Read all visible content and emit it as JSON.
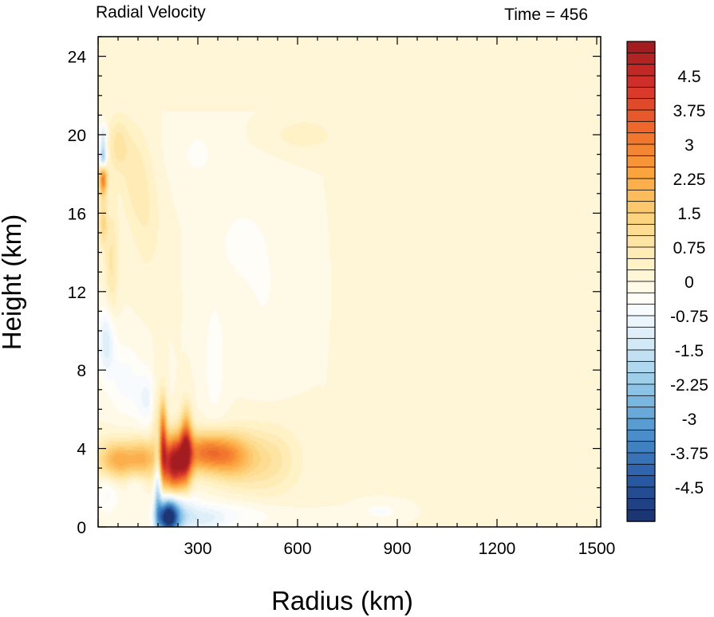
{
  "chart_data": {
    "type": "heatmap",
    "title": "Radial Velocity",
    "time_label": "Time = 456",
    "xlabel": "Radius (km)",
    "ylabel": "Height (km)",
    "xlim": [
      0,
      1500
    ],
    "ylim": [
      0,
      25
    ],
    "x_ticks": [
      300,
      600,
      900,
      1200,
      1500
    ],
    "y_ticks": [
      0,
      4,
      8,
      12,
      16,
      20,
      24
    ],
    "colorbar": {
      "range": [
        -5.25,
        5.25
      ],
      "levels": 42,
      "tick_values": [
        4.5,
        3.75,
        3,
        2.25,
        1.5,
        0.75,
        0,
        -0.75,
        -1.5,
        -2.25,
        -3,
        -3.75,
        -4.5
      ],
      "tick_labels": [
        "4.5",
        "3.75",
        "3",
        "2.25",
        "1.5",
        "0.75",
        "0",
        "-0.75",
        "-1.5",
        "-2.25",
        "-3",
        "-3.75",
        "-4.5"
      ],
      "color_stops": [
        "#1a2f6b",
        "#2a5ca8",
        "#4a90cc",
        "#8ac4e6",
        "#cfe8f6",
        "#ffffff",
        "#fff0c0",
        "#fdd27a",
        "#fba23c",
        "#ee6a2a",
        "#d4302a",
        "#9c1a1e"
      ]
    },
    "features": [
      {
        "x": 230,
        "y": 3.2,
        "sx": 28,
        "sy": 1.0,
        "v": 5.0
      },
      {
        "x": 195,
        "y": 4.6,
        "sx": 8,
        "sy": 1.4,
        "v": 3.0
      },
      {
        "x": 265,
        "y": 4.2,
        "sx": 12,
        "sy": 1.2,
        "v": 3.0
      },
      {
        "x": 320,
        "y": 3.8,
        "sx": 50,
        "sy": 0.7,
        "v": 2.8
      },
      {
        "x": 400,
        "y": 3.6,
        "sx": 45,
        "sy": 0.8,
        "v": 1.8
      },
      {
        "x": 500,
        "y": 3.4,
        "sx": 70,
        "sy": 1.2,
        "v": 1.0
      },
      {
        "x": 60,
        "y": 3.4,
        "sx": 45,
        "sy": 0.7,
        "v": 2.2
      },
      {
        "x": 140,
        "y": 3.5,
        "sx": 30,
        "sy": 0.7,
        "v": 1.6
      },
      {
        "x": 15,
        "y": 17.8,
        "sx": 8,
        "sy": 0.6,
        "v": 3.2
      },
      {
        "x": 15,
        "y": 15.5,
        "sx": 8,
        "sy": 0.8,
        "v": 1.2
      },
      {
        "x": 40,
        "y": 13.5,
        "sx": 14,
        "sy": 2.2,
        "v": 0.8
      },
      {
        "x": 60,
        "y": 19.5,
        "sx": 22,
        "sy": 1.0,
        "v": 0.8
      },
      {
        "x": 110,
        "y": 18.0,
        "sx": 30,
        "sy": 1.8,
        "v": 0.6
      },
      {
        "x": 150,
        "y": 15.5,
        "sx": 30,
        "sy": 2.0,
        "v": 0.4
      },
      {
        "x": 175,
        "y": 5.5,
        "sx": 10,
        "sy": 1.5,
        "v": 1.0
      },
      {
        "x": 620,
        "y": 20.0,
        "sx": 60,
        "sy": 0.5,
        "v": 0.5
      },
      {
        "x": 210,
        "y": 0.5,
        "sx": 22,
        "sy": 0.6,
        "v": -5.0
      },
      {
        "x": 240,
        "y": 0.8,
        "sx": 35,
        "sy": 0.8,
        "v": -1.5
      },
      {
        "x": 320,
        "y": 0.4,
        "sx": 45,
        "sy": 0.5,
        "v": -0.8
      },
      {
        "x": 420,
        "y": 0.6,
        "sx": 90,
        "sy": 0.5,
        "v": -0.5
      },
      {
        "x": 850,
        "y": 0.8,
        "sx": 30,
        "sy": 0.2,
        "v": -0.6
      },
      {
        "x": 15,
        "y": 18.8,
        "sx": 7,
        "sy": 0.5,
        "v": -2.8
      },
      {
        "x": 15,
        "y": 20.0,
        "sx": 7,
        "sy": 0.4,
        "v": -1.2
      },
      {
        "x": 25,
        "y": 9.5,
        "sx": 18,
        "sy": 1.2,
        "v": -1.2
      },
      {
        "x": 80,
        "y": 7.5,
        "sx": 35,
        "sy": 1.3,
        "v": -0.6
      },
      {
        "x": 150,
        "y": 6.5,
        "sx": 25,
        "sy": 1.0,
        "v": -0.8
      },
      {
        "x": 180,
        "y": 2.3,
        "sx": 8,
        "sy": 1.8,
        "v": -2.0
      },
      {
        "x": 350,
        "y": 8.5,
        "sx": 25,
        "sy": 2.5,
        "v": -0.4
      },
      {
        "x": 420,
        "y": 14.5,
        "sx": 50,
        "sy": 1.5,
        "v": -0.3
      },
      {
        "x": 500,
        "y": 12.0,
        "sx": 50,
        "sy": 3.0,
        "v": -0.25
      },
      {
        "x": 300,
        "y": 19.0,
        "sx": 50,
        "sy": 1.2,
        "v": -0.3
      },
      {
        "x": 30,
        "y": 1.8,
        "sx": 25,
        "sy": 0.8,
        "v": -0.6
      },
      {
        "x": 110,
        "y": 2.2,
        "sx": 20,
        "sy": 0.5,
        "v": -0.5
      }
    ]
  }
}
